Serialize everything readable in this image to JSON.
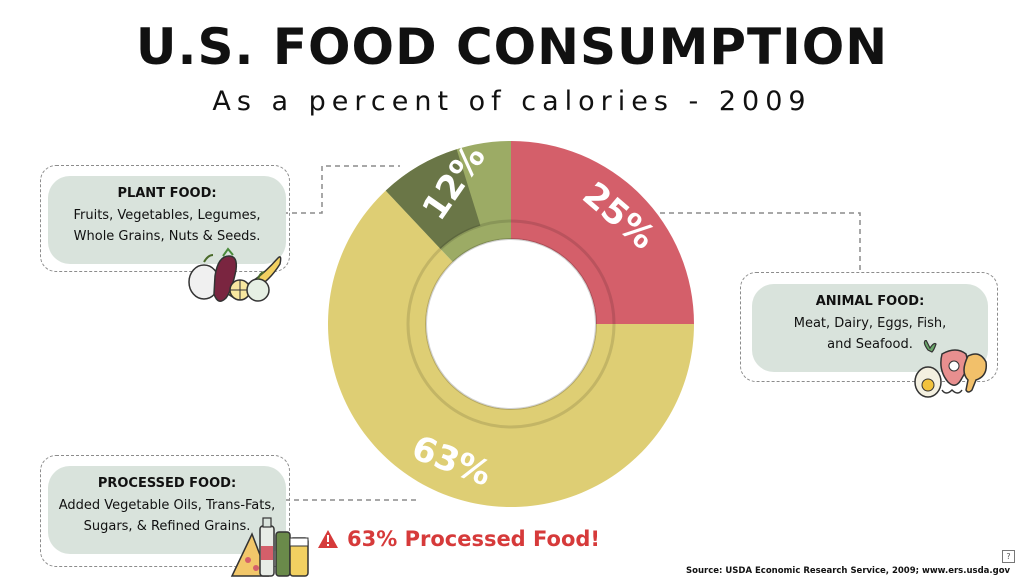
{
  "title": "U.S. FOOD CONSUMPTION",
  "subtitle": "As a percent of calories - 2009",
  "chart_data": {
    "type": "pie",
    "title": "U.S. FOOD CONSUMPTION",
    "subtitle": "As a percent of calories - 2009",
    "categories": [
      "Animal Food",
      "Processed Food",
      "Plant Food"
    ],
    "values": [
      25,
      63,
      12
    ],
    "labels": [
      "25%",
      "63%",
      "12%"
    ],
    "colors": [
      "#d45f6a",
      "#dece74",
      "#9cab65"
    ],
    "inner_colors": [
      "#d45f6a",
      "#dece74",
      "#6a7647"
    ]
  },
  "legend": {
    "plant": {
      "heading": "PLANT FOOD:",
      "line1": "Fruits, Vegetables, Legumes,",
      "line2": "Whole Grains, Nuts & Seeds."
    },
    "animal": {
      "heading": "ANIMAL FOOD:",
      "line1": "Meat, Dairy, Eggs, Fish,",
      "line2": "and Seafood."
    },
    "processed": {
      "heading": "PROCESSED FOOD:",
      "line1": "Added Vegetable Oils, Trans-Fats,",
      "line2": "Sugars, & Refined Grains."
    }
  },
  "warning": "63% Processed Food!",
  "source": "Source: USDA Economic Research Service, 2009; www.ers.usda.gov",
  "icons": [
    "plant-food-icon",
    "animal-food-icon",
    "processed-food-icon",
    "warning-icon",
    "help-icon"
  ]
}
